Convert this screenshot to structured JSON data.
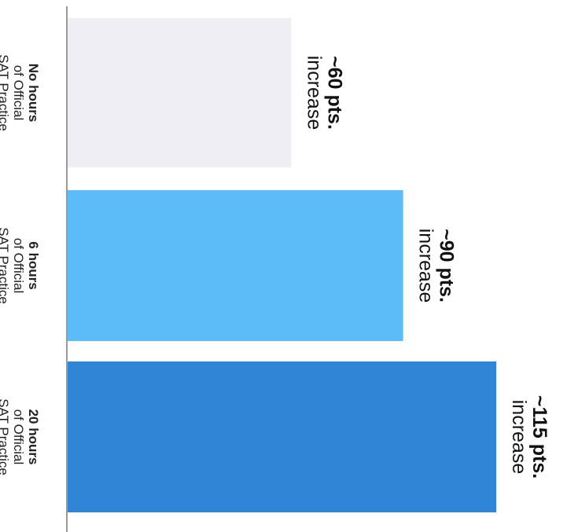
{
  "chart_data": {
    "type": "bar",
    "orientation": "horizontal",
    "categories": [
      {
        "line1": "No hours",
        "line2": "of Official",
        "line3": "SAT Practice"
      },
      {
        "line1": "6 hours",
        "line2": "of Official",
        "line3": "SAT Practice"
      },
      {
        "line1": "20 hours",
        "line2": "of Official",
        "line3": "SAT Practice"
      }
    ],
    "values": [
      60,
      90,
      115
    ],
    "data_labels": [
      {
        "value": "~60 pts.",
        "suffix": "increase"
      },
      {
        "value": "~90 pts.",
        "suffix": "increase"
      },
      {
        "value": "~115 pts.",
        "suffix": "increase"
      }
    ],
    "colors": [
      "#f0eef5",
      "#5bbcf8",
      "#3185d6"
    ],
    "axis_color": "#9a9a9a",
    "title": "",
    "xlabel": "",
    "ylabel": "",
    "xlim": [
      0,
      120
    ],
    "grid": false,
    "legend": "none"
  }
}
